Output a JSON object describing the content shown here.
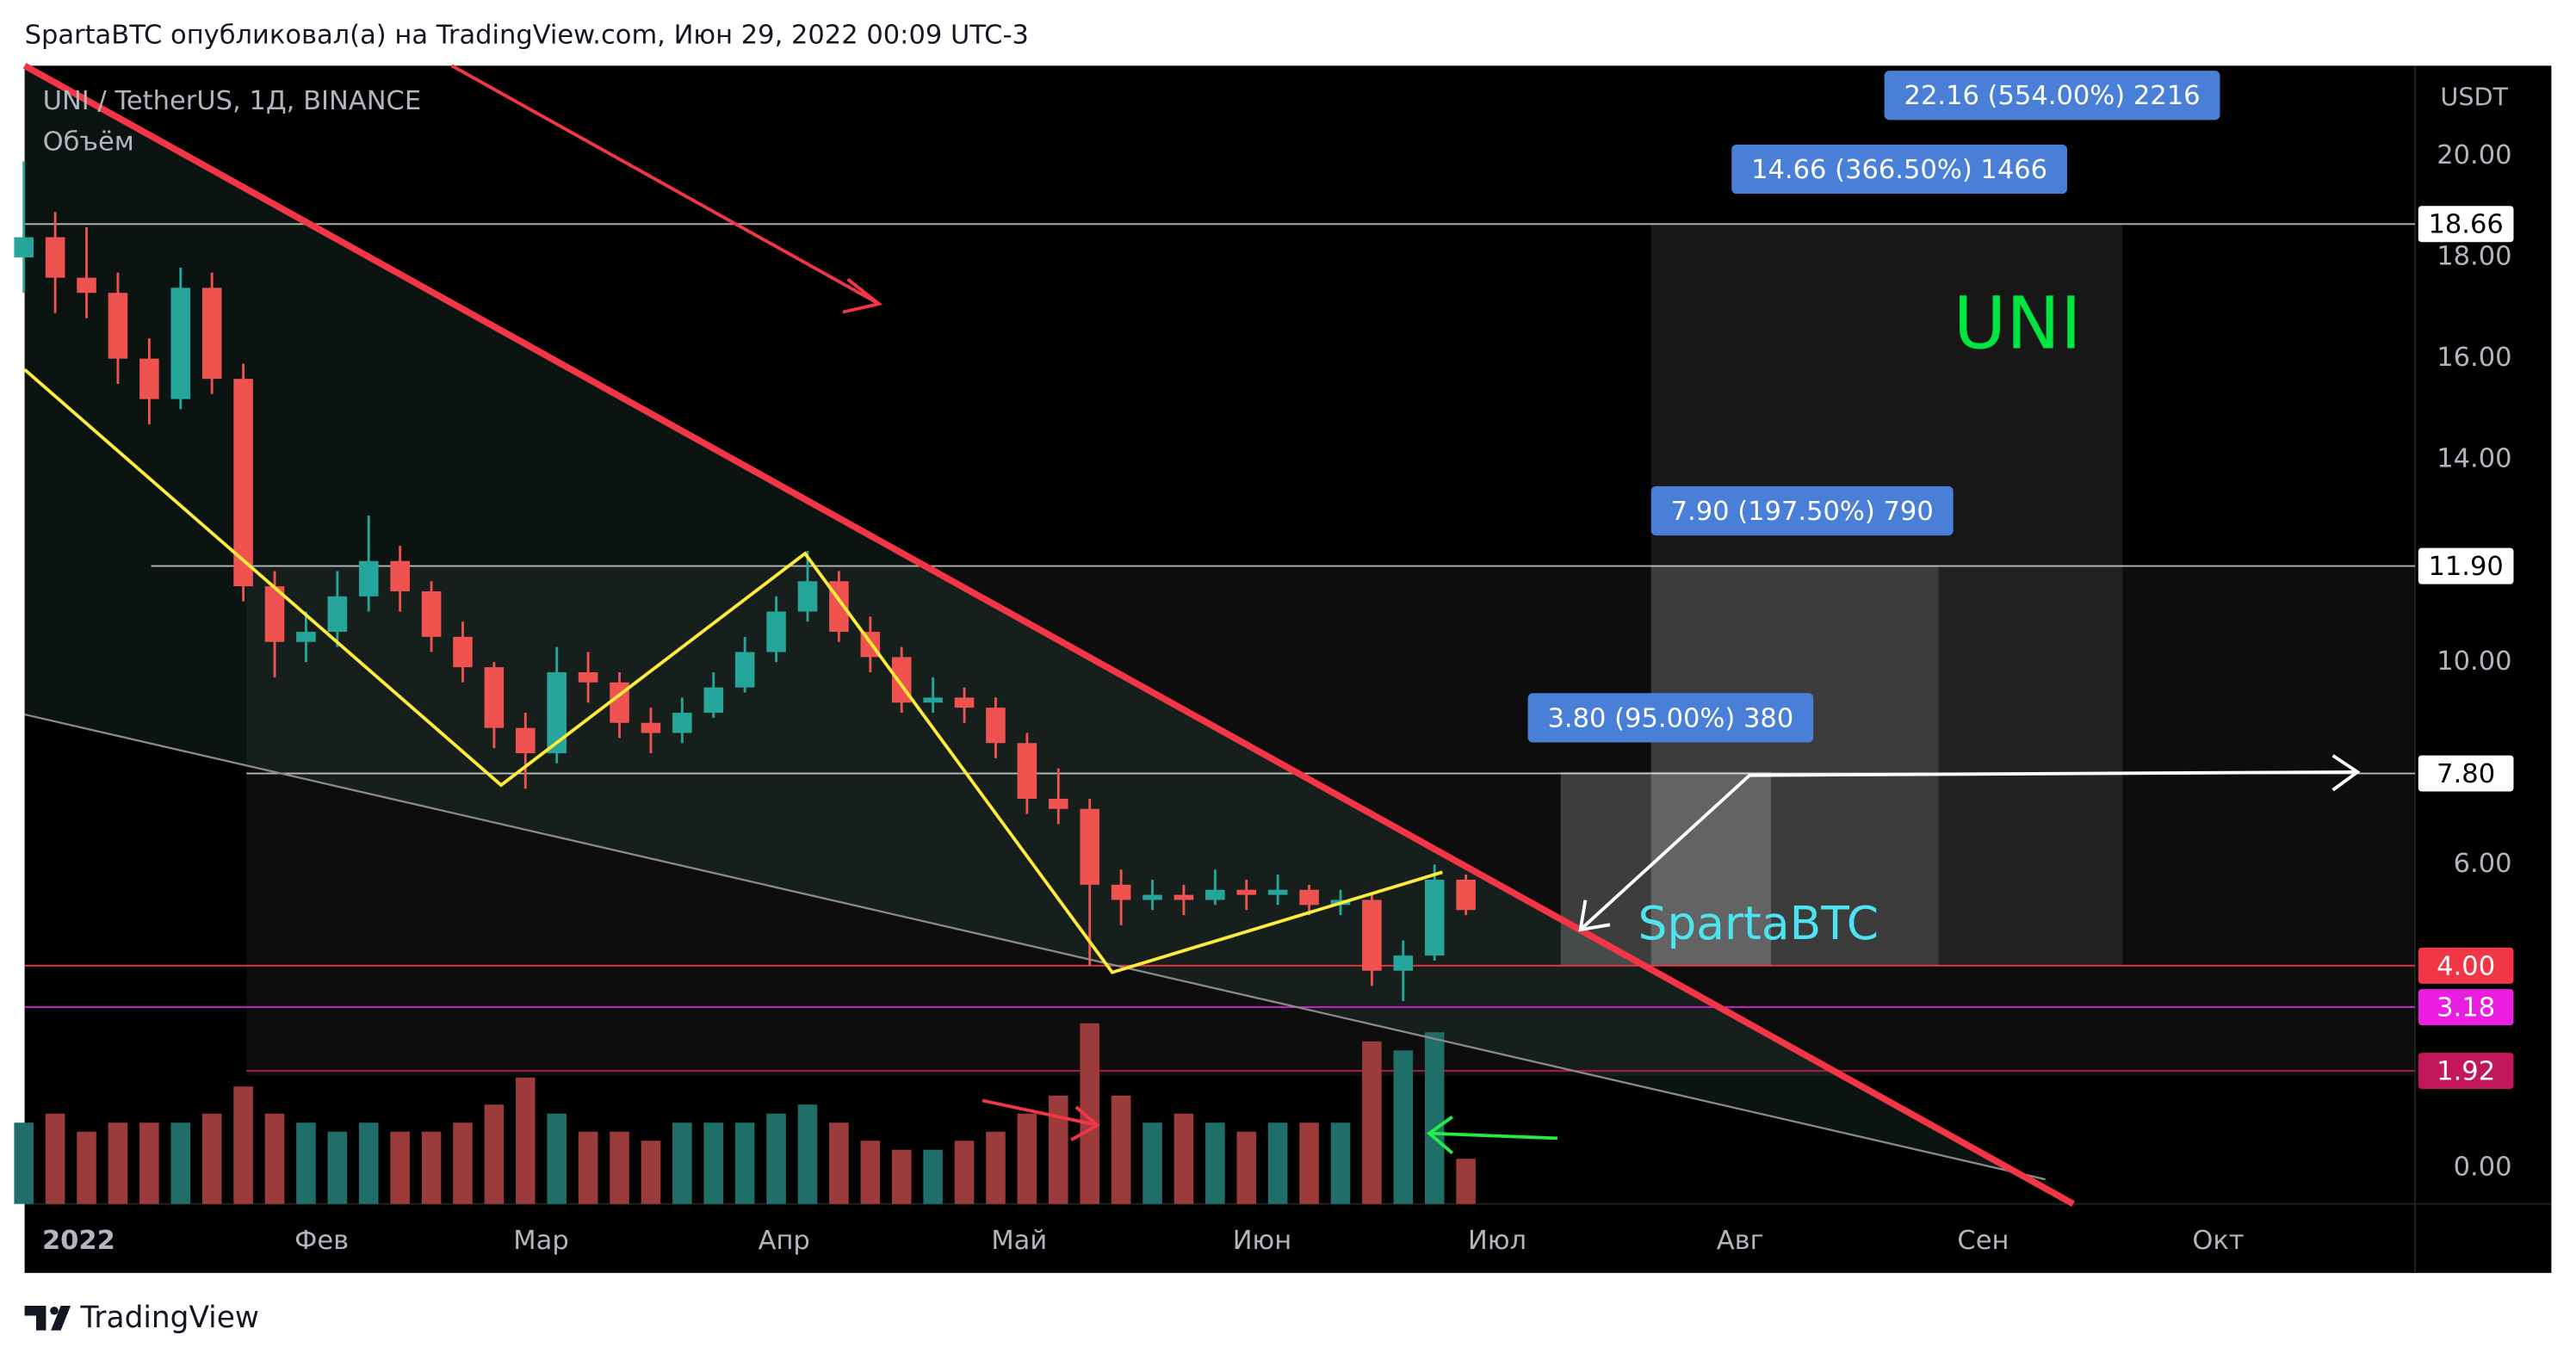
{
  "header": {
    "text": "SpartaBTC опубликовал(а) на TradingView.com, Июн 29, 2022 00:09 UTC-3"
  },
  "chart_data": {
    "type": "candlestick",
    "title": "UNI / TetherUS, 1Д, BINANCE",
    "volume_label": "Объём",
    "currency": "USDT",
    "x": [
      -7,
      -3,
      1,
      5,
      9,
      13,
      17,
      21,
      25,
      29,
      33,
      37,
      41,
      45,
      49,
      53,
      57,
      61,
      65,
      69,
      73,
      77,
      81,
      85,
      89,
      93,
      97,
      101,
      105,
      109,
      113,
      117,
      121,
      125,
      129,
      133,
      137,
      141,
      145,
      149,
      153,
      157,
      161,
      165,
      169,
      173,
      177
    ],
    "open": [
      18.0,
      18.4,
      17.6,
      17.3,
      16.0,
      15.2,
      17.4,
      15.6,
      11.5,
      10.4,
      10.6,
      11.3,
      12.0,
      11.4,
      10.5,
      9.9,
      8.7,
      8.2,
      9.8,
      9.6,
      8.8,
      8.6,
      9.0,
      9.5,
      10.2,
      11.0,
      11.6,
      10.6,
      10.1,
      9.2,
      9.3,
      9.1,
      8.4,
      7.3,
      7.1,
      5.6,
      5.3,
      5.4,
      5.3,
      5.5,
      5.4,
      5.5,
      5.2,
      5.3,
      3.9,
      4.2,
      5.7
    ],
    "high": [
      19.9,
      18.9,
      18.6,
      17.7,
      16.4,
      17.8,
      17.7,
      15.9,
      11.8,
      11.0,
      11.8,
      12.9,
      12.3,
      11.6,
      10.8,
      10.0,
      9.0,
      10.3,
      10.2,
      9.8,
      9.1,
      9.3,
      9.8,
      10.5,
      11.3,
      12.2,
      11.8,
      10.9,
      10.3,
      9.7,
      9.5,
      9.3,
      8.6,
      7.9,
      7.3,
      5.9,
      5.7,
      5.6,
      5.9,
      5.7,
      5.8,
      5.6,
      5.5,
      5.4,
      4.5,
      6.0,
      5.8
    ],
    "low": [
      17.3,
      16.9,
      16.8,
      15.5,
      14.7,
      15.0,
      15.3,
      11.2,
      9.7,
      10.0,
      10.3,
      11.0,
      11.0,
      10.2,
      9.6,
      8.3,
      7.5,
      8.0,
      9.2,
      8.5,
      8.2,
      8.4,
      8.9,
      9.4,
      10.0,
      10.8,
      10.4,
      9.8,
      9.0,
      9.0,
      8.8,
      8.1,
      7.0,
      6.8,
      4.0,
      4.8,
      5.1,
      5.0,
      5.2,
      5.1,
      5.2,
      5.0,
      5.0,
      3.6,
      3.3,
      4.1,
      5.0
    ],
    "close": [
      18.4,
      17.6,
      17.3,
      16.0,
      15.2,
      17.4,
      15.6,
      11.5,
      10.4,
      10.6,
      11.3,
      12.0,
      11.4,
      10.5,
      9.9,
      8.7,
      8.2,
      9.8,
      9.6,
      8.8,
      8.6,
      9.0,
      9.5,
      10.2,
      11.0,
      11.6,
      10.6,
      10.1,
      9.2,
      9.3,
      9.1,
      8.4,
      7.3,
      7.1,
      5.6,
      5.3,
      5.4,
      5.3,
      5.5,
      5.4,
      5.5,
      5.2,
      5.3,
      3.9,
      4.2,
      5.7,
      5.1
    ],
    "volume": [
      45,
      50,
      40,
      45,
      45,
      45,
      50,
      65,
      50,
      45,
      40,
      45,
      40,
      40,
      45,
      55,
      70,
      50,
      40,
      40,
      35,
      45,
      45,
      45,
      50,
      55,
      45,
      35,
      30,
      30,
      35,
      40,
      50,
      60,
      100,
      60,
      45,
      50,
      45,
      40,
      45,
      45,
      45,
      90,
      85,
      95,
      25
    ],
    "volume_lim": [
      0,
      100
    ],
    "up_color": "#26a69a",
    "down_color": "#ef5350",
    "volume_up_color": "#1f6f68",
    "volume_down_color": "#9c3b3b",
    "xlim": [
      -6.9,
      298.1
    ],
    "xticks": [
      {
        "value": 0,
        "label": "2022"
      },
      {
        "value": 31,
        "label": "Фев"
      },
      {
        "value": 59,
        "label": "Мар"
      },
      {
        "value": 90,
        "label": "Апр"
      },
      {
        "value": 120,
        "label": "Май"
      },
      {
        "value": 151,
        "label": "Июн"
      },
      {
        "value": 181,
        "label": "Июл"
      },
      {
        "value": 212,
        "label": "Авг"
      },
      {
        "value": 243,
        "label": "Сен"
      },
      {
        "value": 273,
        "label": "Окт"
      }
    ],
    "ylim": [
      -0.71,
      21.79
    ],
    "yticks": [
      {
        "value": 0,
        "label": "0.00"
      },
      {
        "value": 6,
        "label": "6.00"
      },
      {
        "value": 10,
        "label": "10.00"
      },
      {
        "value": 14,
        "label": "14.00"
      },
      {
        "value": 16,
        "label": "16.00"
      },
      {
        "value": 18,
        "label": "18.00"
      },
      {
        "value": 20,
        "label": "20.00"
      }
    ],
    "levels": [
      {
        "value": 18.66,
        "color": "#ffffff"
      },
      {
        "value": 11.9,
        "label": "11.90",
        "color": "#ffffff"
      },
      {
        "value": 7.8,
        "label": "7.80",
        "color": "#ffffff"
      },
      {
        "value": 4,
        "label": "4.00",
        "color": "#f23645"
      },
      {
        "value": 3.18,
        "color": "#e91ee0"
      },
      {
        "value": 1.92,
        "color": "#c2185b"
      }
    ],
    "targets": [
      "22.16 (554.00%) 2216",
      "14.66 (366.50%) 1466",
      "7.90 (197.50%) 790",
      "3.80 (95.00%) 380"
    ],
    "symbol_note": "UNI",
    "author_note": "SpartaBTC"
  },
  "footer": {
    "brand": "TradingView"
  }
}
